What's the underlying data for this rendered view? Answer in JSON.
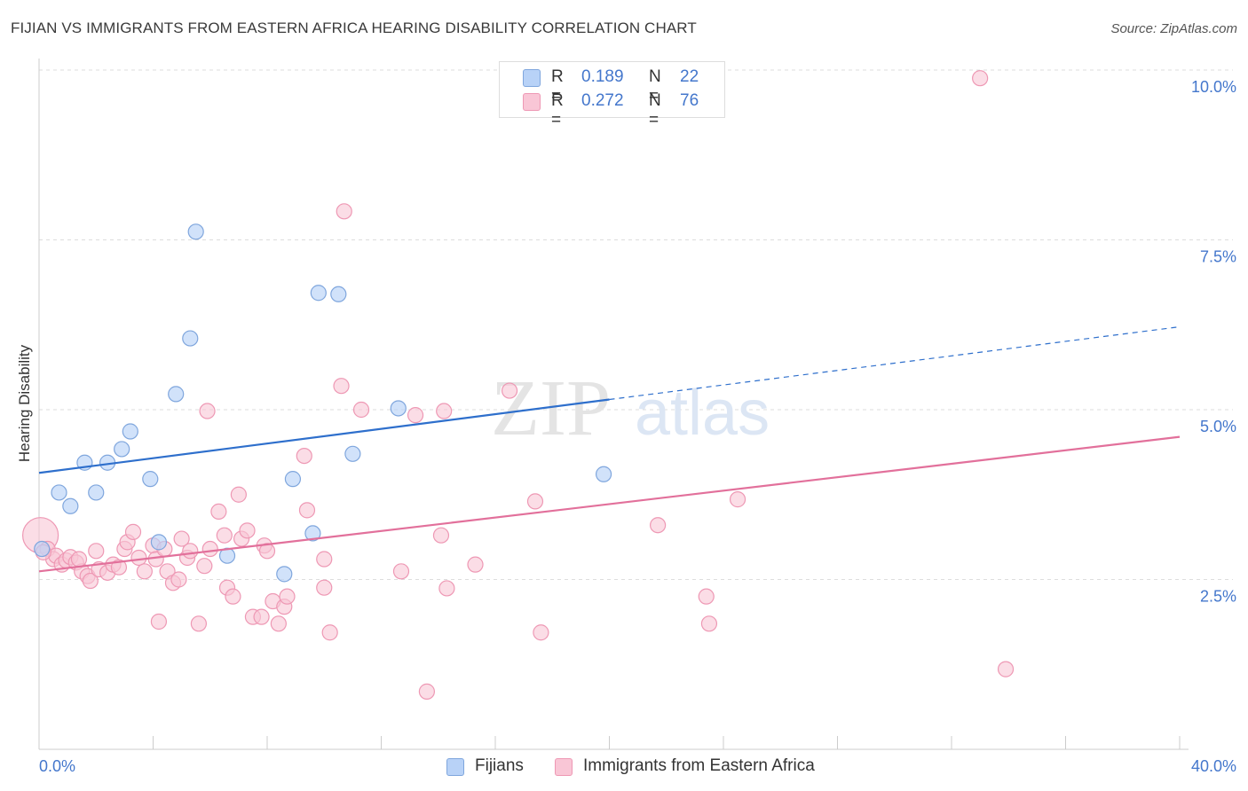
{
  "header": {
    "title": "FIJIAN VS IMMIGRANTS FROM EASTERN AFRICA HEARING DISABILITY CORRELATION CHART",
    "source": "Source: ZipAtlas.com"
  },
  "legend_top": {
    "rows": [
      {
        "r_key": "R =",
        "r_value": "0.189",
        "n_key": "N =",
        "n_value": "22"
      },
      {
        "r_key": "R =",
        "r_value": "0.272",
        "n_key": "N =",
        "n_value": "76"
      }
    ]
  },
  "legend_bottom": {
    "items": [
      "Fijians",
      "Immigrants from Eastern Africa"
    ]
  },
  "watermark": {
    "part1": "ZIP",
    "part2": "atlas"
  },
  "colors": {
    "fijians_fill": "#b8d2f7",
    "fijians_stroke": "#7fa6dd",
    "fijians_line": "#2e6fcc",
    "immigrants_fill": "#f9c6d6",
    "immigrants_stroke": "#ee98b4",
    "immigrants_line": "#e2709b",
    "axis_label": "#4477cc",
    "grid": "#dddddd"
  },
  "chart_data": {
    "type": "scatter",
    "title": "FIJIAN VS IMMIGRANTS FROM EASTERN AFRICA HEARING DISABILITY CORRELATION CHART",
    "xlabel": "",
    "ylabel": "Hearing Disability",
    "xlim": [
      0,
      40
    ],
    "ylim": [
      0,
      10.5
    ],
    "x_tick_labels": [
      "0.0%",
      "40.0%"
    ],
    "y_ticks": [
      2.5,
      5.0,
      7.5,
      10.0
    ],
    "y_tick_labels": [
      "2.5%",
      "5.0%",
      "7.5%",
      "10.0%"
    ],
    "grid": true,
    "legend_position": "top-center and bottom",
    "series": [
      {
        "name": "Fijians",
        "r": 0.189,
        "n": 22,
        "trend": {
          "x0": 0,
          "y0": 4.07,
          "x1": 20,
          "y1": 5.15,
          "dashed_to_x": 40,
          "dashed_to_y": 6.22
        },
        "points": [
          [
            0.1,
            2.95
          ],
          [
            0.7,
            3.78
          ],
          [
            1.1,
            3.58
          ],
          [
            1.6,
            4.22
          ],
          [
            2.0,
            3.78
          ],
          [
            2.4,
            4.22
          ],
          [
            2.9,
            4.42
          ],
          [
            3.2,
            4.68
          ],
          [
            3.9,
            3.98
          ],
          [
            4.2,
            3.05
          ],
          [
            4.8,
            5.23
          ],
          [
            5.3,
            6.05
          ],
          [
            5.5,
            7.62
          ],
          [
            6.6,
            2.85
          ],
          [
            8.6,
            2.58
          ],
          [
            8.9,
            3.98
          ],
          [
            9.6,
            3.18
          ],
          [
            9.8,
            6.72
          ],
          [
            10.5,
            6.7
          ],
          [
            11.0,
            4.35
          ],
          [
            12.6,
            5.02
          ],
          [
            19.8,
            4.05
          ]
        ]
      },
      {
        "name": "Immigrants from Eastern Africa",
        "r": 0.272,
        "n": 76,
        "trend": {
          "x0": 0,
          "y0": 2.62,
          "x1": 40,
          "y1": 4.6
        },
        "points": [
          [
            0.05,
            3.15
          ],
          [
            0.3,
            2.95
          ],
          [
            0.5,
            2.8
          ],
          [
            0.6,
            2.85
          ],
          [
            0.8,
            2.72
          ],
          [
            0.95,
            2.78
          ],
          [
            1.1,
            2.83
          ],
          [
            1.3,
            2.75
          ],
          [
            1.5,
            2.62
          ],
          [
            1.7,
            2.55
          ],
          [
            1.8,
            2.48
          ],
          [
            2.0,
            2.92
          ],
          [
            2.1,
            2.65
          ],
          [
            2.4,
            2.6
          ],
          [
            2.6,
            2.72
          ],
          [
            2.8,
            2.68
          ],
          [
            3.0,
            2.95
          ],
          [
            3.1,
            3.05
          ],
          [
            3.3,
            3.2
          ],
          [
            3.5,
            2.82
          ],
          [
            3.7,
            2.62
          ],
          [
            4.0,
            3.0
          ],
          [
            4.1,
            2.8
          ],
          [
            4.2,
            1.88
          ],
          [
            4.5,
            2.62
          ],
          [
            4.7,
            2.45
          ],
          [
            4.9,
            2.5
          ],
          [
            5.0,
            3.1
          ],
          [
            5.2,
            2.82
          ],
          [
            5.3,
            2.92
          ],
          [
            5.6,
            1.85
          ],
          [
            5.8,
            2.7
          ],
          [
            5.9,
            4.98
          ],
          [
            6.0,
            2.95
          ],
          [
            6.3,
            3.5
          ],
          [
            6.5,
            3.15
          ],
          [
            6.6,
            2.38
          ],
          [
            6.8,
            2.25
          ],
          [
            7.0,
            3.75
          ],
          [
            7.1,
            3.1
          ],
          [
            7.3,
            3.22
          ],
          [
            7.5,
            1.95
          ],
          [
            7.8,
            1.95
          ],
          [
            7.9,
            3.0
          ],
          [
            8.0,
            2.92
          ],
          [
            8.2,
            2.18
          ],
          [
            8.4,
            1.85
          ],
          [
            8.6,
            2.1
          ],
          [
            8.7,
            2.25
          ],
          [
            9.3,
            4.32
          ],
          [
            9.4,
            3.52
          ],
          [
            10.0,
            2.8
          ],
          [
            10.0,
            2.38
          ],
          [
            10.2,
            1.72
          ],
          [
            10.6,
            5.35
          ],
          [
            10.7,
            7.92
          ],
          [
            11.3,
            5.0
          ],
          [
            12.7,
            2.62
          ],
          [
            13.2,
            4.92
          ],
          [
            13.6,
            0.85
          ],
          [
            14.1,
            3.15
          ],
          [
            14.2,
            4.98
          ],
          [
            14.3,
            2.37
          ],
          [
            15.3,
            2.72
          ],
          [
            16.5,
            5.28
          ],
          [
            17.4,
            3.65
          ],
          [
            17.6,
            1.72
          ],
          [
            21.7,
            3.3
          ],
          [
            23.4,
            2.25
          ],
          [
            23.5,
            1.85
          ],
          [
            24.5,
            3.68
          ],
          [
            33.0,
            9.88
          ],
          [
            33.9,
            1.18
          ],
          [
            0.15,
            2.9
          ],
          [
            1.4,
            2.8
          ],
          [
            4.4,
            2.95
          ]
        ]
      }
    ]
  }
}
